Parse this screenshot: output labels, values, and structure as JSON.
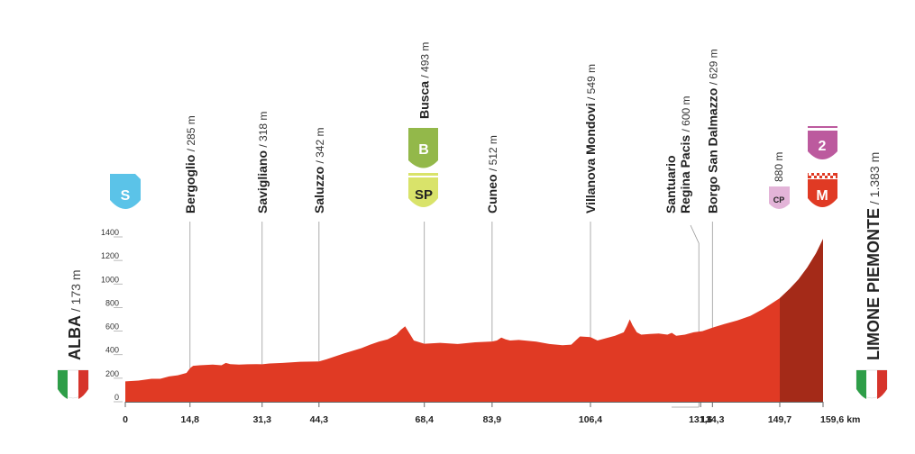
{
  "chart_data": {
    "type": "area",
    "x_unit": "km",
    "xlim": [
      0,
      159.6
    ],
    "ylim": [
      0,
      1400
    ],
    "y_ticks": [
      0,
      200,
      400,
      600,
      800,
      1000,
      1200,
      1400
    ],
    "x_tick_labels": [
      "0",
      "14,8",
      "31,3",
      "44,3",
      "68,4",
      "83,9",
      "106,4",
      "131,6",
      "134,3",
      "149,7",
      "159,6 km"
    ],
    "x_tick_values": [
      0,
      14.8,
      31.3,
      44.3,
      68.4,
      83.9,
      106.4,
      131.6,
      134.3,
      149.7,
      159.6
    ],
    "x": [
      0,
      3,
      6,
      8,
      10,
      12,
      14,
      14.8,
      15.5,
      17,
      20,
      22,
      23,
      24,
      26,
      28,
      30,
      31.3,
      33,
      36,
      40,
      44.3,
      46,
      50,
      54,
      56,
      58,
      60,
      62,
      63,
      64,
      66,
      68.4,
      72,
      76,
      80,
      83.9,
      85,
      86,
      87,
      88,
      90,
      94,
      97,
      100,
      102,
      104,
      106.4,
      108,
      110,
      112,
      114,
      114.7,
      115.4,
      116,
      117,
      118,
      120,
      122,
      124,
      125,
      126,
      128,
      130,
      132,
      134.3,
      137,
      140,
      143,
      146,
      149.7,
      152,
      154,
      156,
      158,
      159.6
    ],
    "y": [
      173,
      180,
      195,
      195,
      215,
      225,
      245,
      285,
      305,
      310,
      315,
      310,
      330,
      320,
      315,
      318,
      320,
      318,
      325,
      330,
      340,
      342,
      360,
      410,
      455,
      485,
      510,
      530,
      570,
      610,
      640,
      520,
      493,
      500,
      490,
      505,
      512,
      520,
      545,
      530,
      520,
      525,
      510,
      490,
      480,
      485,
      555,
      549,
      520,
      540,
      560,
      590,
      640,
      700,
      650,
      590,
      570,
      575,
      580,
      570,
      585,
      560,
      570,
      590,
      600,
      629,
      660,
      690,
      730,
      790,
      880,
      960,
      1040,
      1140,
      1260,
      1383
    ],
    "climb_start_km": 149.7,
    "waypoints": [
      {
        "name": "Bergoglio",
        "alt": "285 m",
        "km": 14.8
      },
      {
        "name": "Savigliano",
        "alt": "318 m",
        "km": 31.3
      },
      {
        "name": "Saluzzo",
        "alt": "342 m",
        "km": 44.3
      },
      {
        "name": "Busca",
        "alt": "493 m",
        "km": 68.4
      },
      {
        "name": "Cuneo",
        "alt": "512 m",
        "km": 83.9
      },
      {
        "name": "Villanova Mondovi",
        "alt": "549 m",
        "km": 106.4
      },
      {
        "name": "Santuario",
        "name2": "Regina Pacis",
        "alt": "600 m",
        "km": 131.6
      },
      {
        "name": "Borgo San Dalmazzo",
        "alt": "629 m",
        "km": 134.3
      }
    ],
    "start": {
      "name": "ALBA",
      "alt": "173 m"
    },
    "finish": {
      "name": "LIMONE PIEMONTE",
      "alt": "1.383 m"
    },
    "cp_altitude": "880 m",
    "markers": {
      "start": "S",
      "bonus": "B",
      "sprint": "SP",
      "checkpoint": "CP",
      "climb_category": "2",
      "mountain": "M"
    },
    "colors": {
      "profile": "#E03A24",
      "climb": "#A42A18",
      "start_badge": "#5BC3E8",
      "bonus_badge": "#93B84A",
      "sprint_badge": "#D9E36A",
      "cp_badge": "#E3B4D8",
      "climb_badge": "#BC5A9E",
      "mountain_badge": "#E03A24",
      "flag_green": "#2E9E48",
      "flag_red": "#D6342B"
    }
  }
}
